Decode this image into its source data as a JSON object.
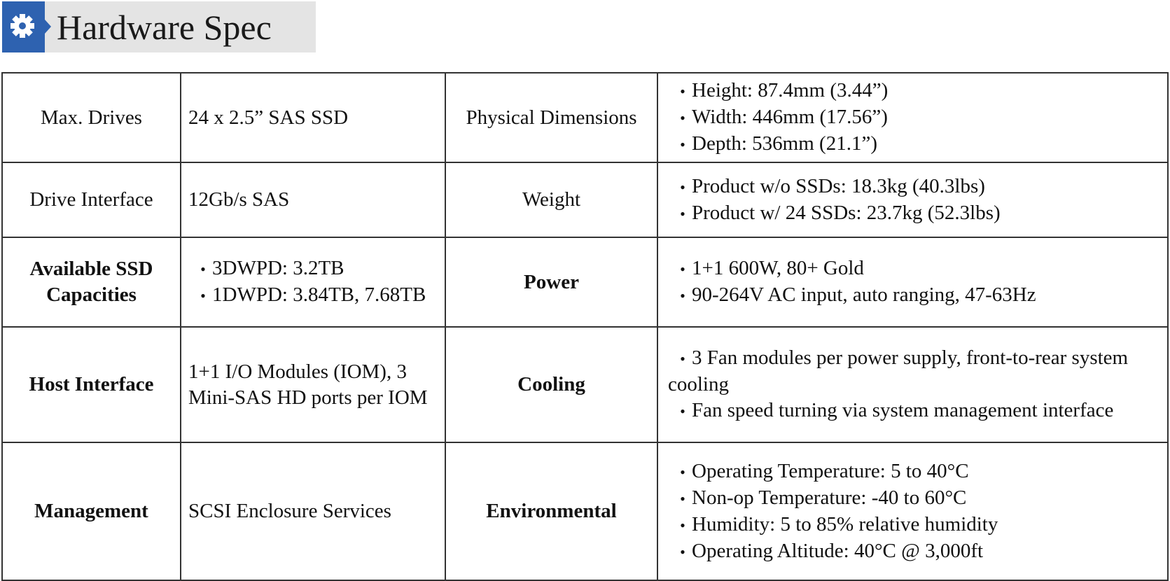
{
  "header": {
    "title": "Hardware Spec"
  },
  "table": {
    "rows": [
      [
        {
          "text": "Max. Drives"
        },
        {
          "text": "24 x 2.5”  SAS SSD"
        },
        {
          "text": "Physical Dimensions"
        },
        {
          "items": [
            "Height: 87.4mm (3.44”)",
            "Width: 446mm (17.56”)",
            "Depth: 536mm (21.1”)"
          ]
        }
      ],
      [
        {
          "text": "Drive Interface"
        },
        {
          "text": "12Gb/s SAS"
        },
        {
          "text": "Weight"
        },
        {
          "items": [
            "Product w/o SSDs: 18.3kg (40.3lbs)",
            "Product w/ 24 SSDs: 23.7kg (52.3lbs)"
          ]
        }
      ],
      [
        {
          "text": "Available SSD Capacities"
        },
        {
          "items": [
            "3DWPD: 3.2TB",
            "1DWPD: 3.84TB, 7.68TB"
          ]
        },
        {
          "text": "Power"
        },
        {
          "items": [
            "1+1 600W, 80+ Gold",
            "90-264V AC input, auto ranging, 47-63Hz"
          ]
        }
      ],
      [
        {
          "text": "Host Interface"
        },
        {
          "text": "1+1 I/O Modules (IOM), 3 Mini-SAS HD ports per IOM"
        },
        {
          "text": "Cooling"
        },
        {
          "items": [
            "3 Fan modules per power supply, front-to-rear system cooling",
            "Fan speed turning via system management interface"
          ]
        }
      ],
      [
        {
          "text": "Management"
        },
        {
          "text": "SCSI Enclosure Services"
        },
        {
          "text": "Environmental"
        },
        {
          "items": [
            "Operating Temperature: 5 to 40°C",
            "Non-op Temperature: -40 to 60°C",
            "Humidity: 5 to 85% relative humidity",
            "Operating Altitude: 40°C @ 3,000ft"
          ]
        }
      ]
    ]
  }
}
